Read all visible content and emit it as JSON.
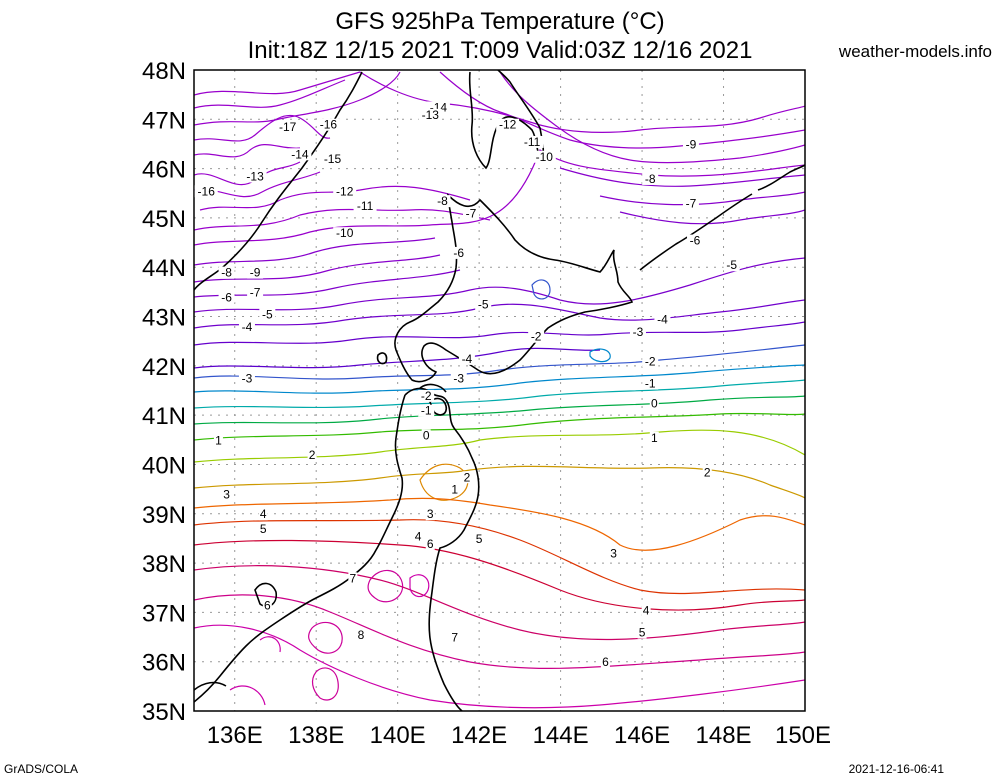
{
  "title_line1": "GFS 925hPa Temperature (°C)",
  "title_line2": "Init:18Z 12/15 2021 T:009 Valid:03Z 12/16 2021",
  "site": "weather-models.info",
  "credit": "GrADS/COLA",
  "timestamp": "2021-12-16-06:41",
  "map": {
    "lon_range": [
      135,
      150
    ],
    "lat_range": [
      35,
      48
    ],
    "lat_ticks": [
      "35N",
      "36N",
      "37N",
      "38N",
      "39N",
      "40N",
      "41N",
      "42N",
      "43N",
      "44N",
      "45N",
      "46N",
      "47N",
      "48N"
    ],
    "lon_ticks": [
      "136E",
      "138E",
      "140E",
      "142E",
      "144E",
      "146E",
      "148E",
      "150E"
    ],
    "grid": true,
    "contour_interval_c": 1
  },
  "contour_labels": [
    {
      "text": "-17",
      "lon": 137.3,
      "lat": 46.8
    },
    {
      "text": "-16",
      "lon": 138.3,
      "lat": 46.85
    },
    {
      "text": "-14",
      "lon": 141.0,
      "lat": 47.2
    },
    {
      "text": "-13",
      "lon": 140.8,
      "lat": 47.05
    },
    {
      "text": "-12",
      "lon": 142.7,
      "lat": 46.85
    },
    {
      "text": "-11",
      "lon": 143.3,
      "lat": 46.5
    },
    {
      "text": "-10",
      "lon": 143.6,
      "lat": 46.2
    },
    {
      "text": "-9",
      "lon": 147.2,
      "lat": 46.45
    },
    {
      "text": "-15",
      "lon": 138.4,
      "lat": 46.15
    },
    {
      "text": "-14",
      "lon": 137.6,
      "lat": 46.25
    },
    {
      "text": "-13",
      "lon": 136.5,
      "lat": 45.8
    },
    {
      "text": "-16",
      "lon": 135.3,
      "lat": 45.5
    },
    {
      "text": "-12",
      "lon": 138.7,
      "lat": 45.5
    },
    {
      "text": "-11",
      "lon": 139.2,
      "lat": 45.2
    },
    {
      "text": "-10",
      "lon": 138.7,
      "lat": 44.65
    },
    {
      "text": "-8",
      "lon": 141.1,
      "lat": 45.3
    },
    {
      "text": "-8",
      "lon": 146.2,
      "lat": 45.75
    },
    {
      "text": "-7",
      "lon": 147.2,
      "lat": 45.25
    },
    {
      "text": "-7",
      "lon": 141.8,
      "lat": 45.05
    },
    {
      "text": "-6",
      "lon": 147.3,
      "lat": 44.5
    },
    {
      "text": "-6",
      "lon": 141.5,
      "lat": 44.25
    },
    {
      "text": "-5",
      "lon": 148.2,
      "lat": 44.0
    },
    {
      "text": "-9",
      "lon": 136.5,
      "lat": 43.85
    },
    {
      "text": "-8",
      "lon": 135.8,
      "lat": 43.85
    },
    {
      "text": "-7",
      "lon": 136.5,
      "lat": 43.45
    },
    {
      "text": "-6",
      "lon": 135.8,
      "lat": 43.35
    },
    {
      "text": "-5",
      "lon": 136.8,
      "lat": 43.0
    },
    {
      "text": "-4",
      "lon": 136.3,
      "lat": 42.75
    },
    {
      "text": "-5",
      "lon": 142.1,
      "lat": 43.2
    },
    {
      "text": "-4",
      "lon": 146.5,
      "lat": 42.9
    },
    {
      "text": "-3",
      "lon": 145.9,
      "lat": 42.65
    },
    {
      "text": "-2",
      "lon": 143.4,
      "lat": 42.55
    },
    {
      "text": "-4",
      "lon": 141.7,
      "lat": 42.1
    },
    {
      "text": "-3",
      "lon": 136.3,
      "lat": 41.7
    },
    {
      "text": "-3",
      "lon": 141.5,
      "lat": 41.7
    },
    {
      "text": "-2",
      "lon": 146.2,
      "lat": 42.05
    },
    {
      "text": "-1",
      "lon": 146.2,
      "lat": 41.6
    },
    {
      "text": "-2",
      "lon": 140.7,
      "lat": 41.35
    },
    {
      "text": "-1",
      "lon": 140.7,
      "lat": 41.05
    },
    {
      "text": "0",
      "lon": 146.3,
      "lat": 41.2
    },
    {
      "text": "0",
      "lon": 140.7,
      "lat": 40.55
    },
    {
      "text": "1",
      "lon": 135.6,
      "lat": 40.45
    },
    {
      "text": "1",
      "lon": 146.3,
      "lat": 40.5
    },
    {
      "text": "2",
      "lon": 137.9,
      "lat": 40.15
    },
    {
      "text": "2",
      "lon": 141.7,
      "lat": 39.7
    },
    {
      "text": "1",
      "lon": 141.4,
      "lat": 39.45
    },
    {
      "text": "2",
      "lon": 147.6,
      "lat": 39.8
    },
    {
      "text": "3",
      "lon": 135.8,
      "lat": 39.35
    },
    {
      "text": "3",
      "lon": 140.8,
      "lat": 38.95
    },
    {
      "text": "4",
      "lon": 136.7,
      "lat": 38.95
    },
    {
      "text": "5",
      "lon": 136.7,
      "lat": 38.65
    },
    {
      "text": "4",
      "lon": 140.5,
      "lat": 38.5
    },
    {
      "text": "5",
      "lon": 142.0,
      "lat": 38.45
    },
    {
      "text": "6",
      "lon": 140.8,
      "lat": 38.35
    },
    {
      "text": "3",
      "lon": 145.3,
      "lat": 38.15
    },
    {
      "text": "7",
      "lon": 138.9,
      "lat": 37.65
    },
    {
      "text": "6",
      "lon": 136.8,
      "lat": 37.1
    },
    {
      "text": "4",
      "lon": 146.1,
      "lat": 37.0
    },
    {
      "text": "8",
      "lon": 139.1,
      "lat": 36.5
    },
    {
      "text": "7",
      "lon": 141.4,
      "lat": 36.45
    },
    {
      "text": "5",
      "lon": 146.0,
      "lat": 36.55
    },
    {
      "text": "6",
      "lon": 145.1,
      "lat": 35.95
    }
  ]
}
